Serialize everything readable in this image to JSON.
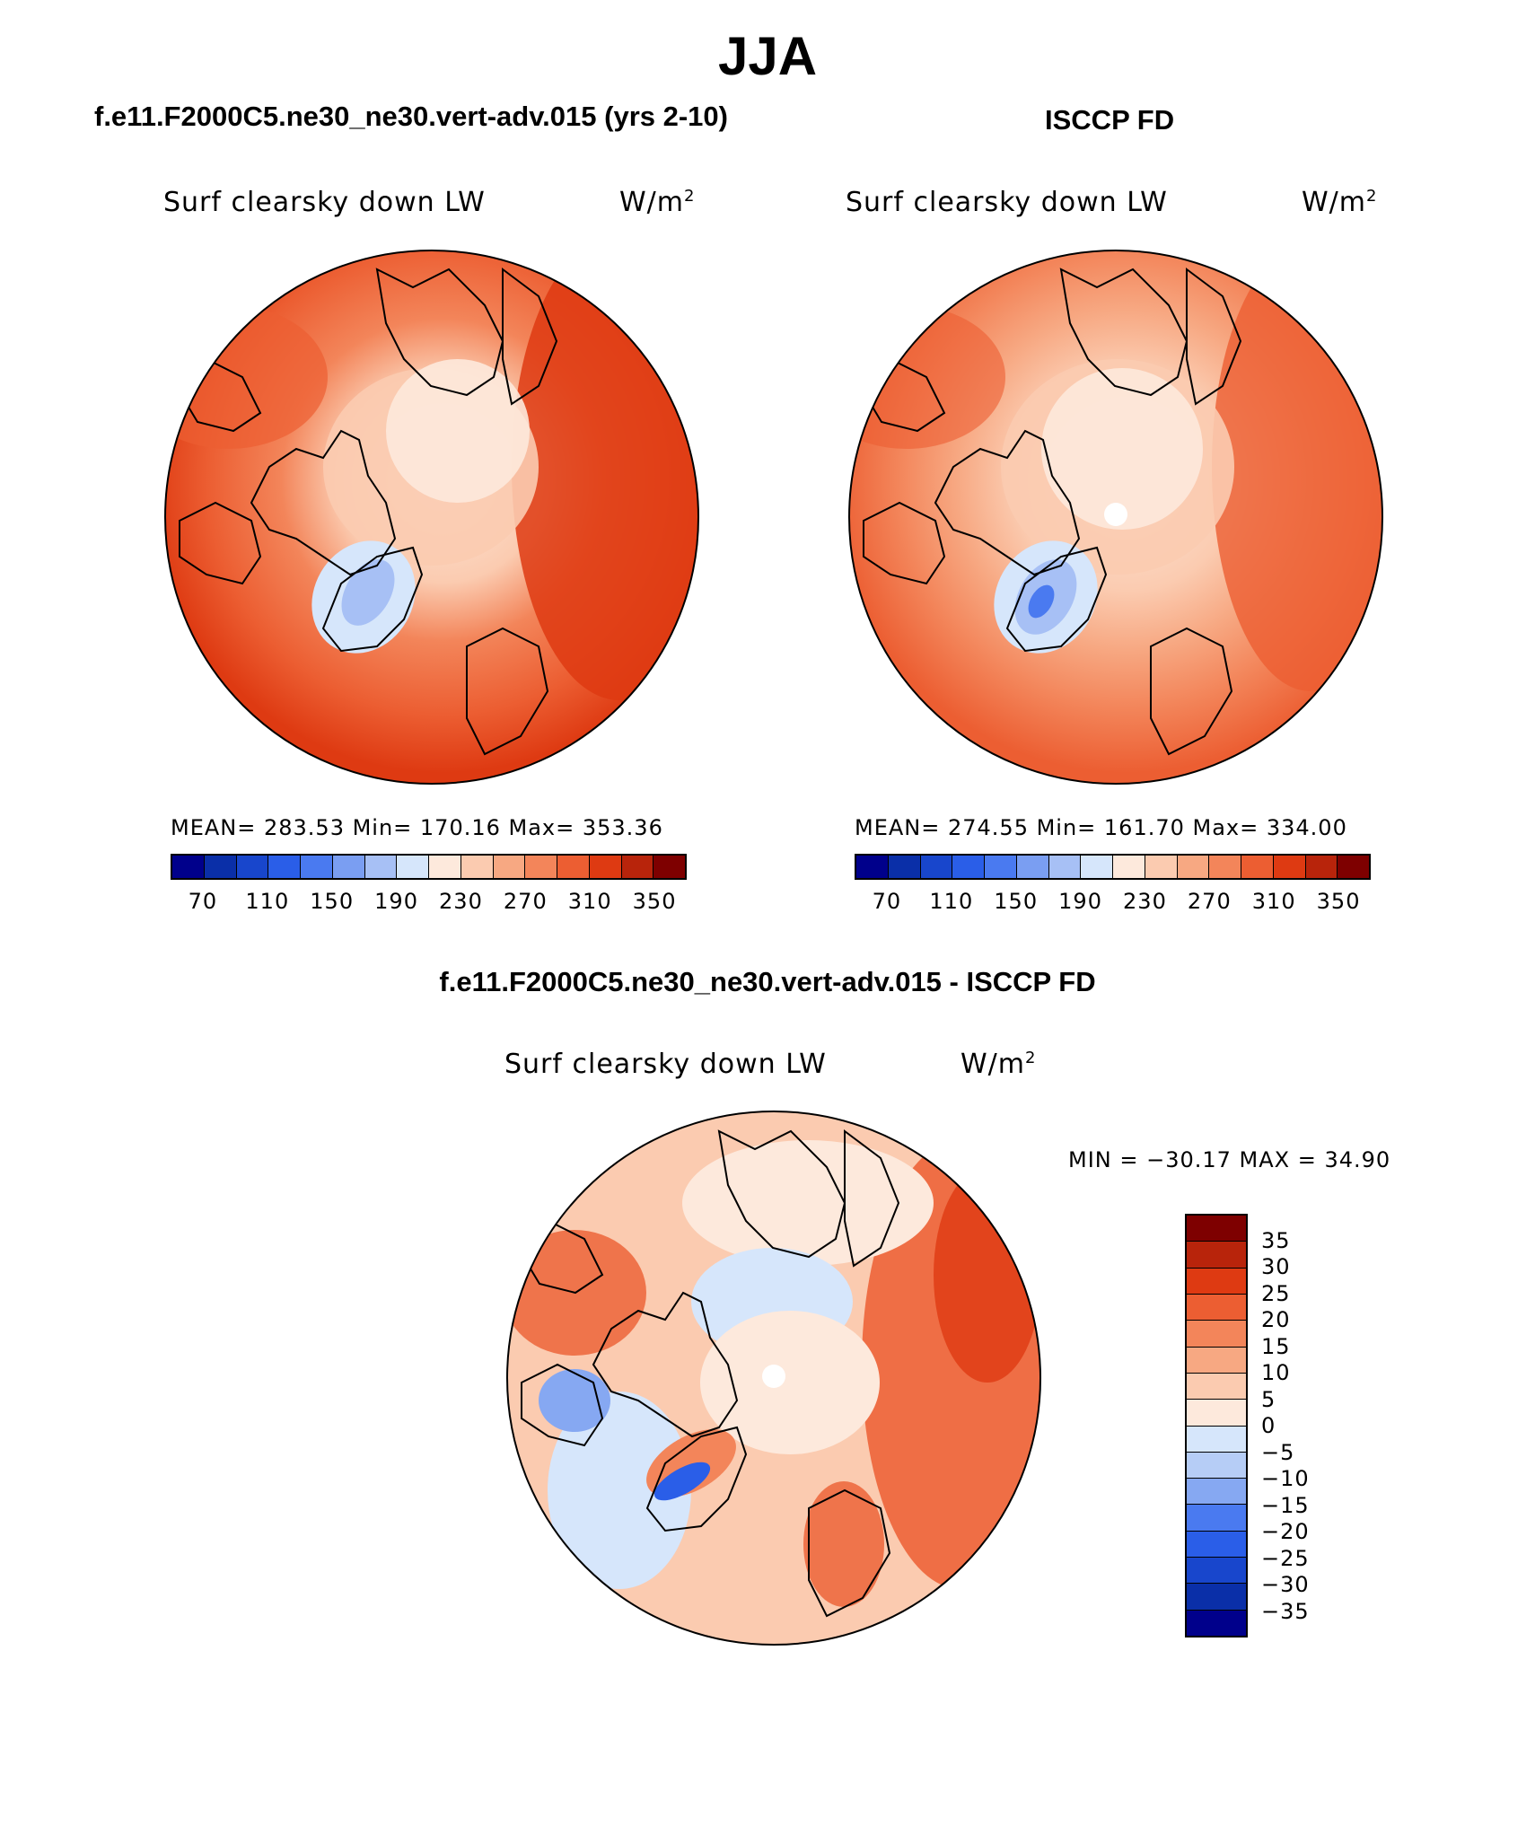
{
  "page": {
    "title": "JJA"
  },
  "panels": {
    "model": {
      "title": "f.e11.F2000C5.ne30_ne30.vert-adv.015 (yrs 2-10)",
      "variable": "Surf clearsky down LW",
      "units_base": "W/m",
      "units_exp": "2",
      "stats": "MEAN= 283.53   Min= 170.16   Max= 353.36"
    },
    "obs": {
      "title": "ISCCP FD",
      "variable": "Surf clearsky down LW",
      "units_base": "W/m",
      "units_exp": "2",
      "stats": "MEAN= 274.55   Min= 161.70   Max= 334.00"
    },
    "diff": {
      "title": "f.e11.F2000C5.ne30_ne30.vert-adv.015 - ISCCP FD",
      "variable": "Surf clearsky down LW",
      "units_base": "W/m",
      "units_exp": "2",
      "stats": "MIN = −30.17 MAX =  34.90"
    }
  },
  "colorbar_abs": {
    "colors": [
      "#00008b",
      "#0a2fa8",
      "#1846cc",
      "#2a5ee8",
      "#4a7af0",
      "#7a9ef2",
      "#a7c0f5",
      "#d6e6fb",
      "#fde9dc",
      "#fbcbb0",
      "#f7a882",
      "#f3855a",
      "#ec5e32",
      "#de3a12",
      "#b8240b",
      "#7e0000"
    ],
    "tick_labels": [
      "70",
      "110",
      "150",
      "190",
      "230",
      "270",
      "310",
      "350"
    ]
  },
  "colorbar_diff": {
    "colors": [
      "#7e0000",
      "#b8240b",
      "#de3a12",
      "#ec5e32",
      "#f3855a",
      "#f7a882",
      "#fbcbb0",
      "#fde9dc",
      "#d6e6fb",
      "#b6cdf6",
      "#86a8f2",
      "#4a7af0",
      "#2a5ee8",
      "#1846cc",
      "#0a2fa8",
      "#00008b"
    ],
    "tick_labels": [
      "35",
      "30",
      "25",
      "20",
      "15",
      "10",
      "5",
      "0",
      "−5",
      "−10",
      "−15",
      "−20",
      "−25",
      "−30",
      "−35"
    ]
  },
  "map": {
    "projection": "North polar stereographic",
    "region": "Northern Hemisphere high latitudes"
  }
}
